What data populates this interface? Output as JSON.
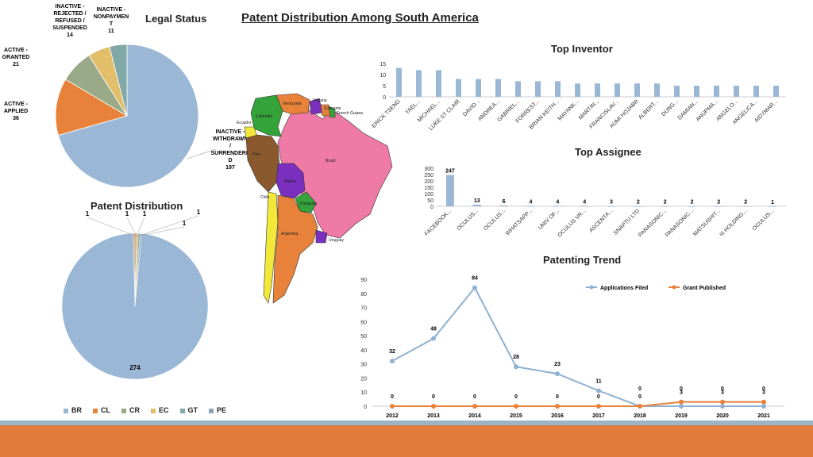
{
  "page_title": "Patent Distribution Among South America",
  "colors": {
    "blue": "#9ab8d6",
    "orange": "#e8823a",
    "green_gray": "#9aaa88",
    "gold": "#e2bd6a",
    "teal": "#7fa8a6",
    "steel": "#8ea2b8",
    "footer": "#e07b3c"
  },
  "chart_data": [
    {
      "id": "legal_status",
      "type": "pie",
      "title": "Legal Status",
      "slices": [
        {
          "label": "INACTIVE - WITHDRAWN / SURRENDERED",
          "value": 197,
          "color": "#9ab8d6"
        },
        {
          "label": "ACTIVE - APPLIED",
          "value": 36,
          "color": "#e8823a"
        },
        {
          "label": "ACTIVE - GRANTED",
          "value": 21,
          "color": "#9aaa88"
        },
        {
          "label": "INACTIVE - REJECTED / REFUSED / SUSPENDED",
          "value": 14,
          "color": "#e2bd6a"
        },
        {
          "label": "INACTIVE - NONPAYMENT",
          "value": 11,
          "color": "#7fa8a6"
        }
      ],
      "display_labels": [
        {
          "lines": [
            "INACTIVE -",
            "WITHDRAWN",
            "/",
            "SURRENDERE",
            "D"
          ],
          "value": "197"
        },
        {
          "lines": [
            "ACTIVE -",
            "APPLIED"
          ],
          "value": "36"
        },
        {
          "lines": [
            "ACTIVE -",
            "GRANTED"
          ],
          "value": "21"
        },
        {
          "lines": [
            "INACTIVE -",
            "REJECTED /",
            "REFUSED /",
            "SUSPENDED"
          ],
          "value": "14"
        },
        {
          "lines": [
            "INACTIVE -",
            "NONPAYMEN",
            "T"
          ],
          "value": "11"
        }
      ]
    },
    {
      "id": "patent_distribution",
      "type": "pie",
      "title": "Patent Distribution",
      "slices": [
        {
          "label": "BR",
          "value": 274,
          "color": "#9ab8d6"
        },
        {
          "label": "CL",
          "value": 1,
          "color": "#e8823a"
        },
        {
          "label": "CR",
          "value": 1,
          "color": "#9aaa88"
        },
        {
          "label": "EC",
          "value": 1,
          "color": "#e2bd6a"
        },
        {
          "label": "GT",
          "value": 1,
          "color": "#7fa8a6"
        },
        {
          "label": "PE",
          "value": 1,
          "color": "#8ea2b8"
        }
      ]
    },
    {
      "id": "top_inventor",
      "type": "bar",
      "title": "Top Inventor",
      "categories": [
        "ERICK TSENG",
        "YAEL...",
        "MICHAEL...",
        "LUKE ST CLAIR",
        "DAVID...",
        "ANDREA...",
        "GABRIEL...",
        "FORREST...",
        "BRIAN KEITH...",
        "MAYANK...",
        "MARTIN...",
        "FRANCISLAV...",
        "AUMI HOJABR",
        "ALBERT...",
        "DUNG...",
        "DAMIAN...",
        "ANUPMA...",
        "ANGELO...",
        "ANGELICA...",
        "AIDYMAR..."
      ],
      "values": [
        13,
        12,
        12,
        8,
        8,
        8,
        7,
        7,
        7,
        6,
        6,
        6,
        6,
        6,
        5,
        5,
        5,
        5,
        5,
        5
      ],
      "ylim": [
        0,
        15
      ],
      "yticks": [
        0,
        5,
        10,
        15
      ]
    },
    {
      "id": "top_assignee",
      "type": "bar",
      "title": "Top Assignee",
      "categories": [
        "FACEBOOK...",
        "OCULUS...",
        "OCULUS...",
        "WHATSAPP...",
        "UNIV OF...",
        "OCULUS VR...",
        "ASCENTA...",
        "SNAPTU LTD",
        "PANASONIC...",
        "PANASONIC...",
        "MATSUSHIT...",
        "III HOLDING...",
        "OCULUS..."
      ],
      "values": [
        247,
        13,
        6,
        4,
        4,
        4,
        3,
        2,
        2,
        2,
        2,
        2,
        1
      ],
      "ylim": [
        0,
        300
      ],
      "yticks": [
        0,
        50,
        100,
        150,
        200,
        250,
        300
      ]
    },
    {
      "id": "patenting_trend",
      "type": "line",
      "title": "Patenting Trend",
      "x": [
        "2012",
        "2013",
        "2014",
        "2015",
        "2016",
        "2017",
        "2018",
        "2019",
        "2020",
        "2021"
      ],
      "series": [
        {
          "name": "Applications Filed",
          "values": [
            32,
            48,
            84,
            28,
            23,
            11,
            0,
            0,
            0,
            0
          ],
          "color": "#8fb1d3"
        },
        {
          "name": "Grant Published",
          "values": [
            0,
            0,
            0,
            0,
            0,
            0,
            0,
            3,
            3,
            3
          ],
          "color": "#e8823a"
        }
      ],
      "ylim": [
        0,
        90
      ],
      "yticks": [
        0,
        10,
        20,
        30,
        40,
        50,
        60,
        70,
        80,
        90
      ],
      "legend": "top-right"
    }
  ],
  "map": {
    "regions": [
      "Venezuela",
      "Guyana",
      "Suriname",
      "French Guiana",
      "Colombia",
      "Ecuador",
      "Peru",
      "Brazil",
      "Bolivia",
      "Paraguay",
      "Chile",
      "Argentina",
      "Uruguay"
    ]
  }
}
